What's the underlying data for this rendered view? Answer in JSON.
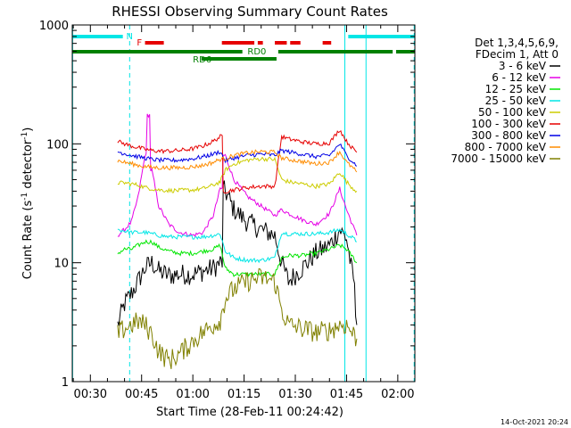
{
  "chart_data": {
    "type": "line",
    "title": "RHESSI Observing Summary Count Rates",
    "xlabel": "Start Time (28-Feb-11 00:24:42)",
    "ylabel_main": "Count Rate (s",
    "ylabel_sup1": "-1",
    "ylabel_mid": " detector",
    "ylabel_sup2": "-1",
    "ylabel_end": ")",
    "yscale": "log",
    "ylim": [
      1,
      1000
    ],
    "xlim_minutes": [
      24.7,
      125
    ],
    "x_ticks": [
      {
        "label": "00:30",
        "min": 30
      },
      {
        "label": "00:45",
        "min": 45
      },
      {
        "label": "01:00",
        "min": 60
      },
      {
        "label": "01:15",
        "min": 75
      },
      {
        "label": "01:30",
        "min": 90
      },
      {
        "label": "01:45",
        "min": 105
      },
      {
        "label": "02:00",
        "min": 120
      }
    ],
    "y_ticks": [
      {
        "label": "1",
        "v": 1
      },
      {
        "label": "10",
        "v": 10
      },
      {
        "label": "100",
        "v": 100
      },
      {
        "label": "1000",
        "v": 1000
      }
    ],
    "legend_header": [
      "Det 1,3,4,5,6,9,",
      "FDecim 1, Att 0"
    ],
    "series": [
      {
        "name": "3 - 6 keV",
        "color": "#000000",
        "points": [
          [
            38,
            3
          ],
          [
            40,
            4.5
          ],
          [
            42,
            5.5
          ],
          [
            44,
            7
          ],
          [
            46,
            9
          ],
          [
            48,
            10
          ],
          [
            50,
            8.5
          ],
          [
            53,
            7.8
          ],
          [
            56,
            8
          ],
          [
            60,
            8
          ],
          [
            63,
            8.5
          ],
          [
            66,
            9
          ],
          [
            68,
            10
          ],
          [
            69.5,
            40
          ],
          [
            72,
            28
          ],
          [
            76,
            22
          ],
          [
            80,
            19
          ],
          [
            84,
            17
          ],
          [
            86,
            10
          ],
          [
            88,
            7
          ],
          [
            92,
            9
          ],
          [
            96,
            12
          ],
          [
            100,
            14
          ],
          [
            103,
            19
          ],
          [
            105,
            16
          ],
          [
            107,
            7
          ],
          [
            108,
            3
          ]
        ]
      },
      {
        "name": "6 - 12 keV",
        "color": "#e600e6",
        "points": [
          [
            38,
            17
          ],
          [
            40,
            19
          ],
          [
            42,
            22
          ],
          [
            44,
            36
          ],
          [
            46,
            80
          ],
          [
            47,
            175
          ],
          [
            48,
            60
          ],
          [
            50,
            30
          ],
          [
            53,
            21
          ],
          [
            56,
            18
          ],
          [
            60,
            17
          ],
          [
            63,
            18
          ],
          [
            66,
            25
          ],
          [
            68,
            42
          ],
          [
            69.5,
            80
          ],
          [
            72,
            50
          ],
          [
            76,
            36
          ],
          [
            80,
            30
          ],
          [
            84,
            25
          ],
          [
            86,
            28
          ],
          [
            88,
            26
          ],
          [
            92,
            23
          ],
          [
            96,
            21
          ],
          [
            100,
            26
          ],
          [
            103,
            42
          ],
          [
            105,
            28
          ],
          [
            107,
            20
          ],
          [
            108,
            17
          ]
        ]
      },
      {
        "name": "12 - 25 keV",
        "color": "#00e600",
        "points": [
          [
            38,
            12
          ],
          [
            40,
            13
          ],
          [
            42,
            13
          ],
          [
            44,
            14
          ],
          [
            46,
            15
          ],
          [
            48,
            15
          ],
          [
            50,
            13.5
          ],
          [
            53,
            12.5
          ],
          [
            56,
            12
          ],
          [
            60,
            12
          ],
          [
            63,
            12.5
          ],
          [
            66,
            13
          ],
          [
            68,
            14
          ],
          [
            69.5,
            9
          ],
          [
            72,
            8
          ],
          [
            76,
            8
          ],
          [
            80,
            8
          ],
          [
            84,
            8
          ],
          [
            86,
            11
          ],
          [
            88,
            11.5
          ],
          [
            92,
            11.5
          ],
          [
            96,
            12
          ],
          [
            100,
            13
          ],
          [
            103,
            14
          ],
          [
            105,
            13
          ],
          [
            107,
            11
          ],
          [
            108,
            10
          ]
        ]
      },
      {
        "name": "25 - 50 keV",
        "color": "#00e6e6",
        "points": [
          [
            38,
            19
          ],
          [
            40,
            18.5
          ],
          [
            42,
            18
          ],
          [
            44,
            18
          ],
          [
            46,
            18
          ],
          [
            48,
            17.5
          ],
          [
            50,
            17
          ],
          [
            53,
            16.5
          ],
          [
            56,
            16.5
          ],
          [
            60,
            16.5
          ],
          [
            63,
            16.5
          ],
          [
            66,
            17
          ],
          [
            68,
            17.5
          ],
          [
            69.5,
            12.5
          ],
          [
            72,
            11
          ],
          [
            76,
            10.5
          ],
          [
            80,
            10.5
          ],
          [
            84,
            11
          ],
          [
            86,
            18
          ],
          [
            88,
            17.5
          ],
          [
            92,
            17.5
          ],
          [
            96,
            17.5
          ],
          [
            100,
            18
          ],
          [
            103,
            19
          ],
          [
            105,
            17.5
          ],
          [
            107,
            16
          ],
          [
            108,
            15
          ]
        ]
      },
      {
        "name": "50 - 100 keV",
        "color": "#cccc00",
        "points": [
          [
            38,
            47
          ],
          [
            40,
            47
          ],
          [
            42,
            46
          ],
          [
            44,
            45
          ],
          [
            46,
            43
          ],
          [
            48,
            42
          ],
          [
            50,
            41
          ],
          [
            53,
            40.5
          ],
          [
            56,
            40.5
          ],
          [
            60,
            41
          ],
          [
            63,
            42
          ],
          [
            66,
            45
          ],
          [
            68,
            48
          ],
          [
            69.5,
            60
          ],
          [
            72,
            68
          ],
          [
            76,
            73
          ],
          [
            80,
            75
          ],
          [
            84,
            74
          ],
          [
            86,
            50
          ],
          [
            88,
            48
          ],
          [
            92,
            46
          ],
          [
            96,
            44
          ],
          [
            100,
            46
          ],
          [
            103,
            58
          ],
          [
            105,
            48
          ],
          [
            107,
            42
          ],
          [
            108,
            40
          ]
        ]
      },
      {
        "name": "100 - 300 keV",
        "color": "#e60000",
        "points": [
          [
            38,
            105
          ],
          [
            40,
            100
          ],
          [
            42,
            96
          ],
          [
            44,
            93
          ],
          [
            46,
            90
          ],
          [
            48,
            88
          ],
          [
            50,
            87
          ],
          [
            53,
            87
          ],
          [
            56,
            88
          ],
          [
            60,
            91
          ],
          [
            63,
            96
          ],
          [
            66,
            105
          ],
          [
            68,
            115
          ],
          [
            69.5,
            40
          ],
          [
            72,
            41
          ],
          [
            76,
            43
          ],
          [
            80,
            44
          ],
          [
            84,
            44
          ],
          [
            86,
            115
          ],
          [
            88,
            110
          ],
          [
            92,
            104
          ],
          [
            96,
            100
          ],
          [
            100,
            102
          ],
          [
            103,
            132
          ],
          [
            105,
            105
          ],
          [
            107,
            90
          ],
          [
            108,
            85
          ]
        ]
      },
      {
        "name": "300 - 800 keV",
        "color": "#0000e6",
        "points": [
          [
            38,
            86
          ],
          [
            40,
            83
          ],
          [
            42,
            80
          ],
          [
            44,
            78
          ],
          [
            46,
            76
          ],
          [
            48,
            74
          ],
          [
            50,
            73
          ],
          [
            53,
            72.5
          ],
          [
            56,
            73
          ],
          [
            60,
            75
          ],
          [
            63,
            78
          ],
          [
            66,
            82
          ],
          [
            68,
            86
          ],
          [
            69.5,
            72
          ],
          [
            72,
            76
          ],
          [
            76,
            80
          ],
          [
            80,
            82
          ],
          [
            84,
            80
          ],
          [
            86,
            88
          ],
          [
            88,
            86
          ],
          [
            92,
            82
          ],
          [
            96,
            78
          ],
          [
            100,
            80
          ],
          [
            103,
            100
          ],
          [
            105,
            80
          ],
          [
            107,
            70
          ],
          [
            108,
            65
          ]
        ]
      },
      {
        "name": "800 - 7000 keV",
        "color": "#ff8c00",
        "points": [
          [
            38,
            72
          ],
          [
            40,
            70
          ],
          [
            42,
            68
          ],
          [
            44,
            66
          ],
          [
            46,
            64.5
          ],
          [
            48,
            63.5
          ],
          [
            50,
            63
          ],
          [
            53,
            63
          ],
          [
            56,
            63
          ],
          [
            60,
            64
          ],
          [
            63,
            66
          ],
          [
            66,
            70
          ],
          [
            68,
            74
          ],
          [
            69.5,
            75
          ],
          [
            72,
            80
          ],
          [
            76,
            84
          ],
          [
            80,
            86
          ],
          [
            84,
            85
          ],
          [
            86,
            76
          ],
          [
            88,
            74
          ],
          [
            92,
            71
          ],
          [
            96,
            68
          ],
          [
            100,
            70
          ],
          [
            103,
            86
          ],
          [
            105,
            70
          ],
          [
            107,
            62
          ],
          [
            108,
            58
          ]
        ]
      },
      {
        "name": "7000 - 15000 keV",
        "color": "#808000",
        "points": [
          [
            38,
            2.5
          ],
          [
            40,
            2.8
          ],
          [
            42,
            3
          ],
          [
            44,
            3.2
          ],
          [
            46,
            3
          ],
          [
            48,
            2.5
          ],
          [
            50,
            1.8
          ],
          [
            53,
            1.5
          ],
          [
            56,
            1.7
          ],
          [
            60,
            2.2
          ],
          [
            63,
            2.6
          ],
          [
            66,
            3
          ],
          [
            68,
            3.3
          ],
          [
            69.5,
            5
          ],
          [
            72,
            6
          ],
          [
            76,
            7
          ],
          [
            80,
            7.5
          ],
          [
            84,
            7
          ],
          [
            86,
            4
          ],
          [
            88,
            3
          ],
          [
            92,
            2.8
          ],
          [
            96,
            2.6
          ],
          [
            100,
            2.7
          ],
          [
            103,
            3
          ],
          [
            105,
            3
          ],
          [
            107,
            2.5
          ],
          [
            108,
            2.3
          ]
        ]
      }
    ],
    "top_bars": [
      {
        "label": "N",
        "color": "#00e6e6",
        "row": "top",
        "segments": [
          [
            24.7,
            39.5
          ],
          [
            105.5,
            125
          ]
        ]
      },
      {
        "label": "F",
        "color": "#e60000",
        "row": "mid",
        "segments": [
          [
            46,
            51.5
          ],
          [
            68.5,
            78
          ],
          [
            79,
            80.5
          ],
          [
            84,
            87.5
          ],
          [
            88.5,
            91.5
          ],
          [
            98,
            100.5
          ]
        ]
      },
      {
        "label": "RD0",
        "color": "#008000",
        "row": "low",
        "segments": [
          [
            24.7,
            74.5
          ],
          [
            85,
            118.5
          ],
          [
            119.5,
            125
          ]
        ]
      },
      {
        "label": "RD6",
        "color": "#008000",
        "row": "lower",
        "segments": [
          [
            62.5,
            84.5
          ]
        ]
      }
    ],
    "vlines": [
      {
        "min": 24.8,
        "style": "solid",
        "color": "#00e6e6"
      },
      {
        "min": 41.5,
        "style": "dashed",
        "color": "#00e6e6"
      },
      {
        "min": 104.5,
        "style": "solid",
        "color": "#00e6e6"
      },
      {
        "min": 110.7,
        "style": "solid",
        "color": "#00e6e6"
      },
      {
        "min": 124.8,
        "style": "dashed",
        "color": "#00e6e6"
      }
    ]
  },
  "timestamp": "14-Oct-2021 20:24"
}
